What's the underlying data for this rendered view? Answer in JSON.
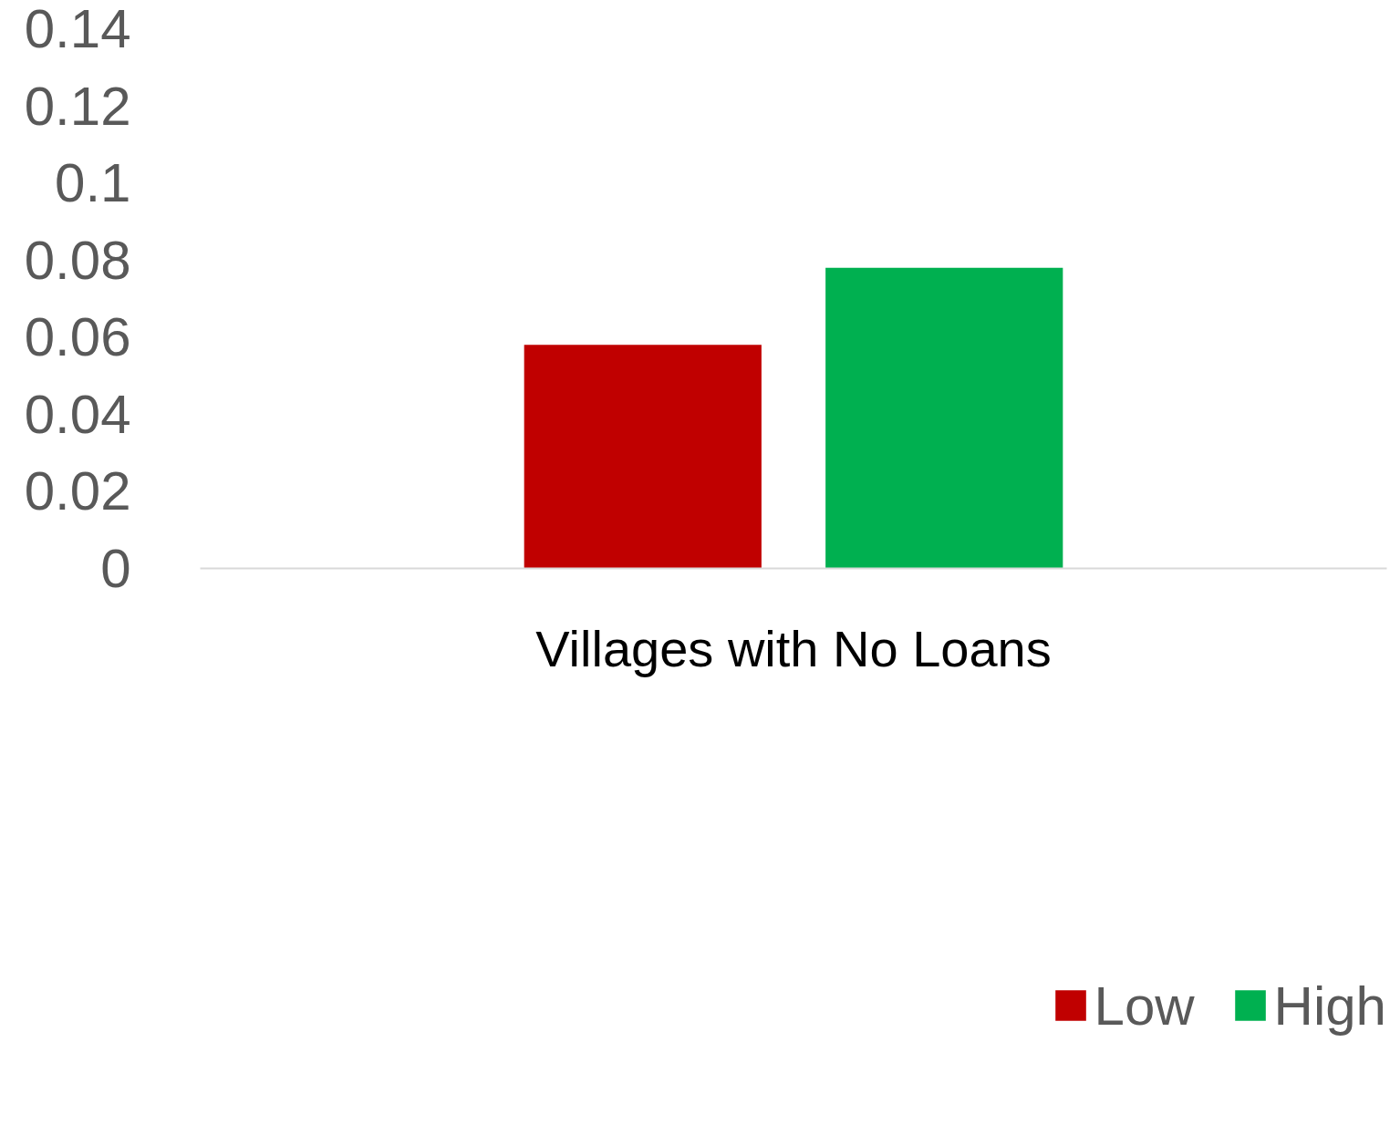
{
  "chart_data": {
    "type": "bar",
    "categories": [
      "Villages with No Loans"
    ],
    "series": [
      {
        "name": "Low",
        "color": "#c00000",
        "values": [
          0.058
        ]
      },
      {
        "name": "High",
        "color": "#00b050",
        "values": [
          0.078
        ]
      }
    ],
    "ylim": [
      0,
      0.14
    ],
    "yticks": [
      0,
      0.02,
      0.04,
      0.06,
      0.08,
      0.1,
      0.12,
      0.14
    ],
    "grid": false,
    "legend": "bottom right"
  }
}
